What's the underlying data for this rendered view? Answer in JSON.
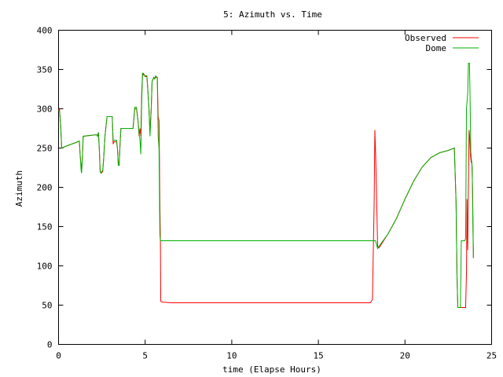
{
  "chart_data": {
    "type": "line",
    "title": "5: Azimuth vs. Time",
    "xlabel": "time (Elapse Hours)",
    "ylabel": "Azimuth",
    "xlim": [
      0,
      25
    ],
    "ylim": [
      0,
      400
    ],
    "x_ticks": [
      0,
      5,
      10,
      15,
      20,
      25
    ],
    "y_ticks": [
      0,
      50,
      100,
      150,
      200,
      250,
      300,
      350,
      400
    ],
    "grid": false,
    "legend_position": "top-right",
    "series": [
      {
        "name": "Observed",
        "color": "#ff0000",
        "points": [
          [
            0.0,
            298
          ],
          [
            0.05,
            300
          ],
          [
            0.12,
            280
          ],
          [
            0.18,
            250
          ],
          [
            0.5,
            253
          ],
          [
            1.0,
            257
          ],
          [
            1.2,
            259
          ],
          [
            1.25,
            240
          ],
          [
            1.3,
            228
          ],
          [
            1.33,
            220
          ],
          [
            1.38,
            240
          ],
          [
            1.42,
            265
          ],
          [
            2.2,
            267
          ],
          [
            2.25,
            265
          ],
          [
            2.3,
            270
          ],
          [
            2.35,
            250
          ],
          [
            2.4,
            222
          ],
          [
            2.45,
            218
          ],
          [
            2.55,
            220
          ],
          [
            2.6,
            235
          ],
          [
            2.68,
            265
          ],
          [
            2.75,
            280
          ],
          [
            2.8,
            290
          ],
          [
            3.0,
            290
          ],
          [
            3.1,
            290
          ],
          [
            3.15,
            255
          ],
          [
            3.2,
            258
          ],
          [
            3.35,
            258
          ],
          [
            3.4,
            250
          ],
          [
            3.45,
            228
          ],
          [
            3.5,
            228
          ],
          [
            3.55,
            255
          ],
          [
            3.6,
            275
          ],
          [
            4.3,
            275
          ],
          [
            4.4,
            300
          ],
          [
            4.5,
            300
          ],
          [
            4.6,
            282
          ],
          [
            4.65,
            265
          ],
          [
            4.7,
            275
          ],
          [
            4.75,
            265
          ],
          [
            4.8,
            320
          ],
          [
            4.85,
            345
          ],
          [
            4.9,
            345
          ],
          [
            5.0,
            341
          ],
          [
            5.1,
            341
          ],
          [
            5.15,
            325
          ],
          [
            5.22,
            300
          ],
          [
            5.28,
            270
          ],
          [
            5.35,
            300
          ],
          [
            5.4,
            335
          ],
          [
            5.5,
            340
          ],
          [
            5.55,
            338
          ],
          [
            5.6,
            340
          ],
          [
            5.7,
            340
          ],
          [
            5.75,
            290
          ],
          [
            5.8,
            285
          ],
          [
            5.85,
            180
          ],
          [
            5.88,
            130
          ],
          [
            5.9,
            55
          ],
          [
            5.95,
            54
          ],
          [
            6.5,
            53
          ],
          [
            7.0,
            53
          ],
          [
            8.0,
            53
          ],
          [
            10.0,
            53
          ],
          [
            12.5,
            53
          ],
          [
            15.0,
            53
          ],
          [
            18.0,
            53
          ],
          [
            18.12,
            57
          ],
          [
            18.18,
            130
          ],
          [
            18.22,
            180
          ],
          [
            18.26,
            273
          ],
          [
            18.3,
            245
          ],
          [
            18.35,
            200
          ],
          [
            18.42,
            125
          ],
          [
            18.5,
            123
          ],
          [
            19.0,
            140
          ],
          [
            19.5,
            160
          ],
          [
            20.0,
            185
          ],
          [
            20.5,
            208
          ],
          [
            21.0,
            226
          ],
          [
            21.5,
            238
          ],
          [
            22.0,
            244
          ],
          [
            22.5,
            247
          ],
          [
            22.85,
            250
          ],
          [
            22.95,
            180
          ],
          [
            23.0,
            90
          ],
          [
            23.05,
            47
          ],
          [
            23.1,
            47
          ],
          [
            23.5,
            47
          ],
          [
            23.55,
            90
          ],
          [
            23.58,
            185
          ],
          [
            23.62,
            120
          ],
          [
            23.66,
            200
          ],
          [
            23.7,
            273
          ],
          [
            23.74,
            262
          ],
          [
            23.78,
            240
          ],
          [
            23.82,
            232
          ],
          [
            23.86,
            232
          ],
          [
            23.9,
            200
          ],
          [
            23.95,
            110
          ]
        ]
      },
      {
        "name": "Dome",
        "color": "#00b000",
        "points": [
          [
            0.0,
            297
          ],
          [
            0.05,
            298
          ],
          [
            0.12,
            280
          ],
          [
            0.18,
            250
          ],
          [
            0.5,
            253
          ],
          [
            1.0,
            257
          ],
          [
            1.2,
            259
          ],
          [
            1.25,
            240
          ],
          [
            1.3,
            222
          ],
          [
            1.33,
            218
          ],
          [
            1.38,
            240
          ],
          [
            1.42,
            265
          ],
          [
            2.2,
            267
          ],
          [
            2.25,
            265
          ],
          [
            2.3,
            270
          ],
          [
            2.35,
            250
          ],
          [
            2.4,
            220
          ],
          [
            2.45,
            218
          ],
          [
            2.55,
            222
          ],
          [
            2.6,
            235
          ],
          [
            2.68,
            265
          ],
          [
            2.75,
            280
          ],
          [
            2.8,
            290
          ],
          [
            3.0,
            290
          ],
          [
            3.1,
            290
          ],
          [
            3.15,
            260
          ],
          [
            3.2,
            260
          ],
          [
            3.35,
            260
          ],
          [
            3.4,
            250
          ],
          [
            3.45,
            228
          ],
          [
            3.5,
            228
          ],
          [
            3.55,
            255
          ],
          [
            3.6,
            275
          ],
          [
            4.3,
            275
          ],
          [
            4.4,
            302
          ],
          [
            4.5,
            302
          ],
          [
            4.6,
            282
          ],
          [
            4.65,
            268
          ],
          [
            4.7,
            260
          ],
          [
            4.75,
            242
          ],
          [
            4.8,
            310
          ],
          [
            4.85,
            345
          ],
          [
            4.9,
            343
          ],
          [
            5.0,
            342
          ],
          [
            5.1,
            342
          ],
          [
            5.15,
            325
          ],
          [
            5.22,
            300
          ],
          [
            5.28,
            265
          ],
          [
            5.35,
            300
          ],
          [
            5.4,
            335
          ],
          [
            5.5,
            340
          ],
          [
            5.55,
            338
          ],
          [
            5.6,
            342
          ],
          [
            5.7,
            340
          ],
          [
            5.75,
            265
          ],
          [
            5.8,
            250
          ],
          [
            5.85,
            140
          ],
          [
            5.88,
            132
          ],
          [
            6.0,
            132
          ],
          [
            10.0,
            132
          ],
          [
            15.0,
            132
          ],
          [
            18.0,
            132
          ],
          [
            18.3,
            132
          ],
          [
            18.42,
            122
          ],
          [
            18.5,
            125
          ],
          [
            19.0,
            140
          ],
          [
            19.5,
            160
          ],
          [
            20.0,
            185
          ],
          [
            20.5,
            208
          ],
          [
            21.0,
            226
          ],
          [
            21.5,
            238
          ],
          [
            22.0,
            244
          ],
          [
            22.5,
            247
          ],
          [
            22.85,
            250
          ],
          [
            22.95,
            180
          ],
          [
            23.0,
            90
          ],
          [
            23.05,
            47
          ],
          [
            23.1,
            47
          ],
          [
            23.2,
            47
          ],
          [
            23.25,
            132
          ],
          [
            23.45,
            132
          ],
          [
            23.5,
            135
          ],
          [
            23.55,
            300
          ],
          [
            23.62,
            320
          ],
          [
            23.66,
            358
          ],
          [
            23.72,
            358
          ],
          [
            23.76,
            310
          ],
          [
            23.8,
            245
          ],
          [
            23.84,
            235
          ],
          [
            23.88,
            225
          ],
          [
            23.92,
            150
          ],
          [
            23.95,
            110
          ]
        ]
      }
    ]
  }
}
